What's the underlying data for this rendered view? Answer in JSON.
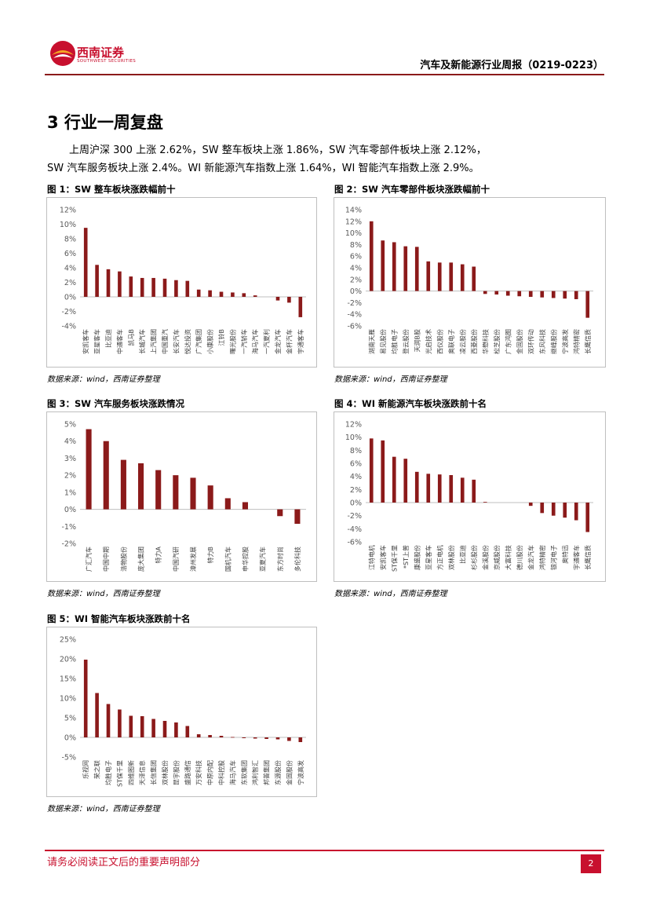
{
  "header": {
    "logo_cn": "西南证券",
    "logo_en": "SOUTHWEST SECURITIES",
    "report_title": "汽车及新能源行业周报（0219-0223）"
  },
  "section": {
    "title": "3 行业一周复盘",
    "para_line1": "上周沪深 300 上涨 2.62%，SW 整车板块上涨 1.86%，SW 汽车零部件板块上涨 2.12%，",
    "para_line2": "SW 汽车服务板块上涨 2.4%。WI 新能源汽车指数上涨 1.64%，WI 智能汽车指数上涨 2.9%。"
  },
  "source_text": "数据来源：wind，西南证券整理",
  "footer": {
    "disclaimer": "请务必阅读正文后的重要声明部分",
    "page": "2"
  },
  "colors": {
    "bar": "#8b1a1a",
    "brand": "#c8102e"
  },
  "chart_data": [
    {
      "id": "fig1",
      "type": "bar",
      "title": "图 1：SW 整车板块涨跌幅前十",
      "categories": [
        "安凯客车",
        "亚星客车",
        "比亚迪",
        "中通客车",
        "凯马B",
        "长城汽车",
        "上汽集团",
        "中国重汽",
        "长安汽车",
        "悦达投资",
        "广汽集团",
        "小康股份",
        "江铃B",
        "曙光股份",
        "一汽轿车",
        "海马汽车",
        "一汽夏利",
        "金龙汽车",
        "金杯汽车",
        "宇通客车"
      ],
      "values": [
        9.5,
        4.4,
        3.8,
        3.5,
        2.8,
        2.6,
        2.6,
        2.5,
        2.3,
        2.2,
        1.0,
        0.9,
        0.7,
        0.6,
        0.5,
        0.2,
        0.0,
        -0.5,
        -0.8,
        -2.8
      ],
      "yticks": [
        -4,
        -2,
        0,
        2,
        4,
        6,
        8,
        10,
        12
      ],
      "ylim": [
        -4,
        12
      ]
    },
    {
      "id": "fig2",
      "type": "bar",
      "title": "图 2：SW 汽车零部件板块涨跌幅前十",
      "categories": [
        "湖南天雁",
        "易见股份",
        "均胜电子",
        "登云股份",
        "天润B股",
        "光启技术",
        "西仪股份",
        "奥联电子",
        "凌云股份",
        "西菱股份",
        "华懋科技",
        "松芝股份",
        "广东鸿图",
        "金固股份",
        "双环传动",
        "东风科技",
        "继峰股份",
        "宁波高发",
        "鸿特精密",
        "长鹰信质"
      ],
      "values": [
        12.0,
        8.7,
        8.4,
        7.7,
        7.6,
        5.1,
        4.9,
        4.9,
        4.6,
        4.2,
        -0.5,
        -0.6,
        -0.8,
        -0.9,
        -1.0,
        -1.1,
        -1.2,
        -1.3,
        -1.4,
        -4.6
      ],
      "yticks": [
        -6,
        -4,
        -2,
        0,
        2,
        4,
        6,
        8,
        10,
        12,
        14
      ],
      "ylim": [
        -6,
        14
      ]
    },
    {
      "id": "fig3",
      "type": "bar",
      "title": "图 3：SW 汽车服务板块涨跌情况",
      "categories": [
        "广汇汽车",
        "中国中期",
        "浩物股份",
        "庞大集团",
        "特力A",
        "中国汽研",
        "漳州发展",
        "特力B",
        "国机汽车",
        "申华控股",
        "亚夏汽车",
        "东方时尚",
        "多伦科技"
      ],
      "values": [
        4.7,
        4.0,
        2.9,
        2.7,
        2.3,
        2.0,
        1.85,
        1.4,
        0.65,
        0.42,
        0.0,
        -0.4,
        -0.85
      ],
      "yticks": [
        -2,
        -1,
        0,
        1,
        2,
        3,
        4,
        5
      ],
      "ylim": [
        -2,
        5
      ]
    },
    {
      "id": "fig4",
      "type": "bar",
      "title": "图 4：WI 新能源汽车板块涨跌前十名",
      "categories": [
        "江特电机",
        "安凯客车",
        "ST保千里",
        "*ST上普",
        "康盛股份",
        "亚星客车",
        "方正电机",
        "双林股份",
        "比亚迪",
        "杉杉股份",
        "金溪股份",
        "京威股份",
        "大富科技",
        "德川股份",
        "金龙汽车",
        "鸿特精密",
        "银河电子",
        "奥特迅",
        "宇通客车",
        "长鹰信质"
      ],
      "values": [
        9.8,
        9.5,
        7.0,
        6.7,
        4.7,
        4.4,
        4.3,
        4.2,
        3.8,
        3.5,
        0.1,
        0.0,
        0.0,
        0.0,
        -0.5,
        -1.6,
        -2.0,
        -2.3,
        -2.7,
        -4.5
      ],
      "yticks": [
        -6,
        -4,
        -2,
        0,
        2,
        4,
        6,
        8,
        10,
        12
      ],
      "ylim": [
        -6,
        12
      ]
    },
    {
      "id": "fig5",
      "type": "bar",
      "title": "图 5：WI 智能汽车板块涨跌前十名",
      "categories": [
        "乐视网",
        "荣之联",
        "均胜电子",
        "ST保千里",
        "四维图新",
        "天泽信息",
        "长信集团",
        "双林股份",
        "昆宇股份",
        "盛路通信",
        "万安科技",
        "中原内配",
        "中科控股",
        "海马汽车",
        "东软集团",
        "鸿利智汇",
        "邦普集团",
        "东源股份",
        "金固股份",
        "宁波高发"
      ],
      "values": [
        19.8,
        11.3,
        8.5,
        7.1,
        5.5,
        5.4,
        4.7,
        4.2,
        3.8,
        2.9,
        0.8,
        0.6,
        0.4,
        0.1,
        -0.2,
        -0.3,
        -0.4,
        -0.5,
        -0.9,
        -1.2
      ],
      "yticks": [
        -5,
        0,
        5,
        10,
        15,
        20,
        25
      ],
      "ylim": [
        -5,
        25
      ]
    }
  ]
}
